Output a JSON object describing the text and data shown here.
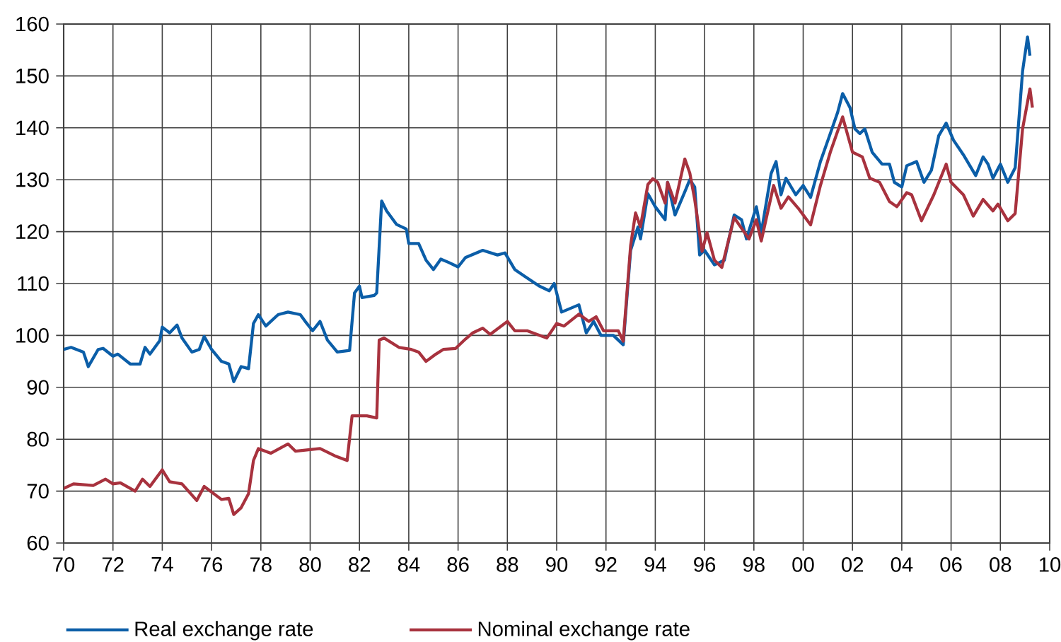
{
  "chart_data": {
    "type": "line",
    "xlim": [
      1970,
      2010
    ],
    "xticks": [
      {
        "value": 1970,
        "label": "70"
      },
      {
        "value": 1972,
        "label": "72"
      },
      {
        "value": 1974,
        "label": "74"
      },
      {
        "value": 1976,
        "label": "76"
      },
      {
        "value": 1978,
        "label": "78"
      },
      {
        "value": 1980,
        "label": "80"
      },
      {
        "value": 1982,
        "label": "82"
      },
      {
        "value": 1984,
        "label": "84"
      },
      {
        "value": 1986,
        "label": "86"
      },
      {
        "value": 1988,
        "label": "88"
      },
      {
        "value": 1990,
        "label": "90"
      },
      {
        "value": 1992,
        "label": "92"
      },
      {
        "value": 1994,
        "label": "94"
      },
      {
        "value": 1996,
        "label": "96"
      },
      {
        "value": 1998,
        "label": "98"
      },
      {
        "value": 2000,
        "label": "00"
      },
      {
        "value": 2002,
        "label": "02"
      },
      {
        "value": 2004,
        "label": "04"
      },
      {
        "value": 2006,
        "label": "06"
      },
      {
        "value": 2008,
        "label": "08"
      },
      {
        "value": 2010,
        "label": "10"
      }
    ],
    "ylim": [
      60,
      160
    ],
    "yticks": [
      60,
      70,
      80,
      90,
      100,
      110,
      120,
      130,
      140,
      150,
      160
    ],
    "grid": true,
    "legend": "bottom",
    "series": [
      {
        "name": "Real exchange rate",
        "color": "#0b5ea8",
        "x": [
          1970.0,
          1970.3,
          1970.8,
          1971.0,
          1971.4,
          1971.6,
          1972.0,
          1972.2,
          1972.7,
          1973.1,
          1973.3,
          1973.5,
          1973.9,
          1974.0,
          1974.3,
          1974.6,
          1974.8,
          1975.2,
          1975.5,
          1975.7,
          1976.0,
          1976.4,
          1976.7,
          1976.9,
          1977.2,
          1977.5,
          1977.7,
          1977.9,
          1978.2,
          1978.7,
          1979.1,
          1979.6,
          1979.8,
          1980.1,
          1980.4,
          1980.7,
          1981.1,
          1981.6,
          1981.8,
          1982.0,
          1982.1,
          1982.6,
          1982.7,
          1982.9,
          1983.1,
          1983.5,
          1983.9,
          1984.0,
          1984.4,
          1984.7,
          1985.0,
          1985.3,
          1985.6,
          1986.0,
          1986.3,
          1987.0,
          1987.6,
          1987.9,
          1988.3,
          1988.7,
          1989.3,
          1989.7,
          1989.9,
          1990.2,
          1990.9,
          1991.2,
          1991.5,
          1991.8,
          1992.3,
          1992.7,
          1993.0,
          1993.3,
          1993.4,
          1993.7,
          1994.0,
          1994.4,
          1994.5,
          1994.8,
          1995.2,
          1995.4,
          1995.6,
          1995.8,
          1996.0,
          1996.4,
          1996.8,
          1997.2,
          1997.5,
          1997.7,
          1998.1,
          1998.3,
          1998.7,
          1998.9,
          1999.1,
          1999.3,
          1999.7,
          2000.0,
          2000.3,
          2000.7,
          2001.1,
          2001.4,
          2001.6,
          2001.9,
          2002.1,
          2002.3,
          2002.5,
          2002.8,
          2003.2,
          2003.5,
          2003.7,
          2004.0,
          2004.2,
          2004.6,
          2004.9,
          2005.2,
          2005.5,
          2005.8,
          2006.1,
          2006.5,
          2007.0,
          2007.3,
          2007.5,
          2007.7,
          2008.0,
          2008.3,
          2008.6,
          2008.9,
          2009.1,
          2009.2
        ],
        "values": [
          97.3,
          97.7,
          96.8,
          94,
          97.3,
          97.5,
          96,
          96.4,
          94.5,
          94.5,
          97.7,
          96.4,
          99,
          101.6,
          100.5,
          102,
          99.5,
          96.8,
          97.3,
          99.8,
          97.3,
          95,
          94.5,
          91.1,
          94,
          93.6,
          102.3,
          104,
          101.8,
          104,
          104.5,
          104,
          102.7,
          100.9,
          102.7,
          99.1,
          96.8,
          97.1,
          108.2,
          109.5,
          107.3,
          107.7,
          108.2,
          125.9,
          124,
          121.4,
          120.5,
          117.7,
          117.7,
          114.5,
          112.7,
          114.7,
          114.1,
          113.2,
          115,
          116.4,
          115.5,
          115.9,
          112.7,
          111.4,
          109.5,
          108.6,
          110,
          104.5,
          105.9,
          100.5,
          102.7,
          100,
          100,
          98.2,
          116.4,
          120.9,
          118.6,
          127.3,
          124.8,
          122.3,
          129.5,
          123.2,
          127.7,
          130,
          128.6,
          115.5,
          116.4,
          113.6,
          114.5,
          123.2,
          122.3,
          118.6,
          124.8,
          119.8,
          131.2,
          133.5,
          127.1,
          130.3,
          127.1,
          128.9,
          126.6,
          133.5,
          138.9,
          143,
          146.6,
          143.9,
          139.8,
          138.9,
          139.8,
          135.3,
          133,
          133,
          129.5,
          128.6,
          132.7,
          133.5,
          129.5,
          131.8,
          138.5,
          140.9,
          137.6,
          134.8,
          130.8,
          134.4,
          133,
          130.3,
          133,
          129.5,
          132.3,
          150.9,
          157.5,
          153.9
        ]
      },
      {
        "name": "Nominal exchange rate",
        "color": "#a8323e",
        "x": [
          1970.0,
          1970.4,
          1971.2,
          1971.7,
          1972.0,
          1972.3,
          1972.9,
          1973.2,
          1973.5,
          1974.0,
          1974.3,
          1974.8,
          1975.4,
          1975.7,
          1976.4,
          1976.7,
          1976.9,
          1977.2,
          1977.5,
          1977.7,
          1977.9,
          1978.4,
          1979.1,
          1979.4,
          1980.4,
          1981.0,
          1981.5,
          1981.7,
          1982.3,
          1982.7,
          1982.8,
          1983.0,
          1983.6,
          1984.1,
          1984.4,
          1984.7,
          1985.1,
          1985.4,
          1985.9,
          1986.3,
          1986.6,
          1987.0,
          1987.3,
          1988.0,
          1988.3,
          1988.8,
          1989.6,
          1990.0,
          1990.3,
          1990.9,
          1991.3,
          1991.6,
          1991.9,
          1992.5,
          1992.7,
          1993.0,
          1993.2,
          1993.4,
          1993.7,
          1993.9,
          1994.1,
          1994.4,
          1994.5,
          1994.8,
          1995.2,
          1995.4,
          1995.6,
          1995.9,
          1996.1,
          1996.4,
          1996.7,
          1997.2,
          1997.8,
          1998.1,
          1998.3,
          1998.8,
          1999.1,
          1999.4,
          1999.8,
          2000.3,
          2000.7,
          2001.1,
          2001.6,
          2002.0,
          2002.4,
          2002.7,
          2003.1,
          2003.5,
          2003.8,
          2004.2,
          2004.4,
          2004.8,
          2005.3,
          2005.8,
          2006.0,
          2006.5,
          2006.9,
          2007.3,
          2007.7,
          2007.9,
          2008.3,
          2008.6,
          2008.9,
          2009.2,
          2009.3
        ],
        "values": [
          70.5,
          71.4,
          71.1,
          72.3,
          71.4,
          71.6,
          70,
          72.3,
          70.9,
          74.1,
          71.8,
          71.4,
          68.2,
          70.9,
          68.4,
          68.6,
          65.5,
          66.8,
          69.5,
          75.9,
          78.2,
          77.3,
          79.1,
          77.7,
          78.2,
          76.8,
          75.9,
          84.5,
          84.5,
          84.1,
          99.1,
          99.5,
          97.7,
          97.3,
          96.8,
          95,
          96.4,
          97.3,
          97.5,
          99.3,
          100.5,
          101.4,
          100.2,
          102.7,
          100.9,
          100.9,
          99.5,
          102.3,
          101.8,
          104.1,
          102.7,
          103.6,
          100.9,
          100.9,
          98.9,
          117.3,
          123.6,
          120.9,
          129.1,
          130.2,
          129.5,
          125.5,
          129.5,
          125.5,
          134,
          131.3,
          126.2,
          116.2,
          119.8,
          114.5,
          113.1,
          122.7,
          118.6,
          122.3,
          118.2,
          128.9,
          124.5,
          126.7,
          124.5,
          121.3,
          128.9,
          135.3,
          142.1,
          135.3,
          134.4,
          130.3,
          129.5,
          125.8,
          124.8,
          127.5,
          127.1,
          122.1,
          127.1,
          133,
          129.5,
          127.1,
          123,
          126.2,
          124,
          125.3,
          122.1,
          123.5,
          139.8,
          147.5,
          143.9
        ]
      }
    ]
  }
}
